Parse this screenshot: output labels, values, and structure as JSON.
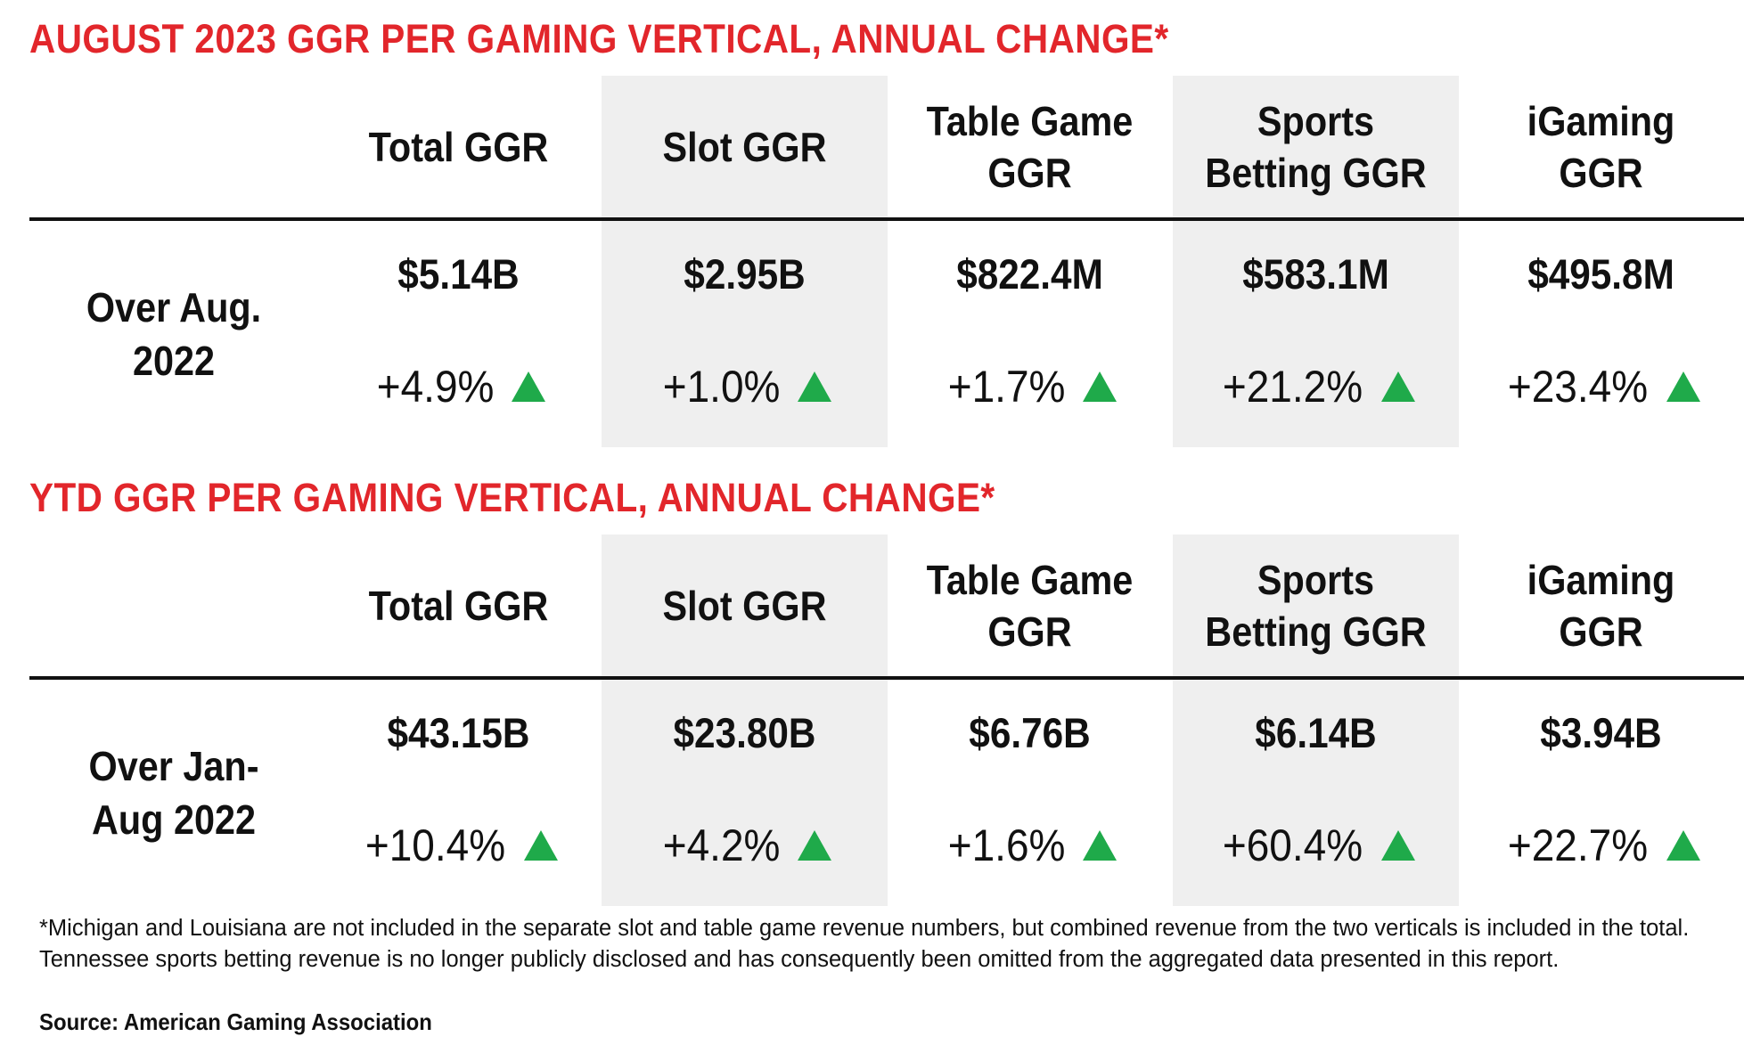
{
  "chart_data": [
    {
      "type": "table",
      "title": "AUGUST 2023 GGR PER GAMING VERTICAL, ANNUAL CHANGE*",
      "columns": [
        "Total GGR",
        "Slot GGR",
        "Table Game\nGGR",
        "Sports\nBetting GGR",
        "iGaming\nGGR"
      ],
      "row_label": "Over Aug.\n2022",
      "values": [
        "$5.14B",
        "$2.95B",
        "$822.4M",
        "$583.1M",
        "$495.8M"
      ],
      "changes": [
        "+4.9%",
        "+1.0%",
        "+1.7%",
        "+21.2%",
        "+23.4%"
      ],
      "change_direction": [
        "up",
        "up",
        "up",
        "up",
        "up"
      ]
    },
    {
      "type": "table",
      "title": "YTD GGR PER GAMING VERTICAL, ANNUAL CHANGE*",
      "columns": [
        "Total GGR",
        "Slot GGR",
        "Table Game\nGGR",
        "Sports\nBetting GGR",
        "iGaming\nGGR"
      ],
      "row_label": "Over Jan-\nAug 2022",
      "values": [
        "$43.15B",
        "$23.80B",
        "$6.76B",
        "$6.14B",
        "$3.94B"
      ],
      "changes": [
        "+10.4%",
        "+4.2%",
        "+1.6%",
        "+60.4%",
        "+22.7%"
      ],
      "change_direction": [
        "up",
        "up",
        "up",
        "up",
        "up"
      ]
    }
  ],
  "footnote": "*Michigan and Louisiana are not included in the separate slot and table game revenue numbers, but combined revenue from the two verticals is included in the total. Tennessee sports betting revenue is no longer publicly disclosed and has consequently been omitted from the aggregated data presented in this report.",
  "source": "Source: American Gaming Association",
  "colors": {
    "title": "#e2262b",
    "up_arrow": "#1faa4a",
    "shaded_column": "#efefef",
    "text": "#111111"
  },
  "icons": {
    "change_indicator": "up-triangle-icon"
  }
}
